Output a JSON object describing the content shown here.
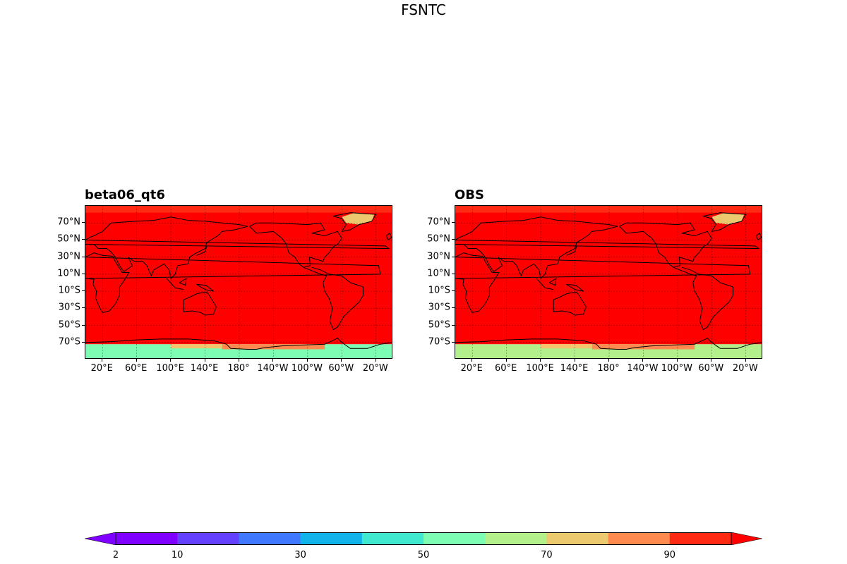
{
  "title": "FSNTC",
  "panels": [
    {
      "title": "beta06_qt6",
      "south_band_color": "#7dfdb4",
      "antarctic_edge_color": "#f6c36d"
    },
    {
      "title": "OBS",
      "south_band_color": "#b2f08c",
      "antarctic_edge_color": "#f6c36d"
    }
  ],
  "lat_labels": [
    "70°N",
    "50°N",
    "30°N",
    "10°N",
    "10°S",
    "30°S",
    "50°S",
    "70°S"
  ],
  "lat_values": [
    70,
    50,
    30,
    10,
    -10,
    -30,
    -50,
    -70
  ],
  "lon_labels": [
    "20°E",
    "60°E",
    "100°E",
    "140°E",
    "180°",
    "140°W",
    "100°W",
    "60°W",
    "20°W"
  ],
  "lon_values": [
    20,
    60,
    100,
    140,
    180,
    220,
    260,
    300,
    340
  ],
  "colorbar": {
    "colors": [
      "#7f00ff",
      "#6440ff",
      "#3f78ff",
      "#10b4ea",
      "#40e8d0",
      "#7dfdb4",
      "#b2f08c",
      "#ecc86f",
      "#ff8a50",
      "#ff2a14"
    ],
    "extend_low_color": "#8000ff",
    "extend_high_color": "#ff0000",
    "tick_labels": [
      "2",
      "10",
      "30",
      "50",
      "70",
      "90"
    ],
    "tick_values": [
      2,
      10,
      30,
      50,
      70,
      90
    ]
  },
  "map_fill_color": "#ff0000"
}
